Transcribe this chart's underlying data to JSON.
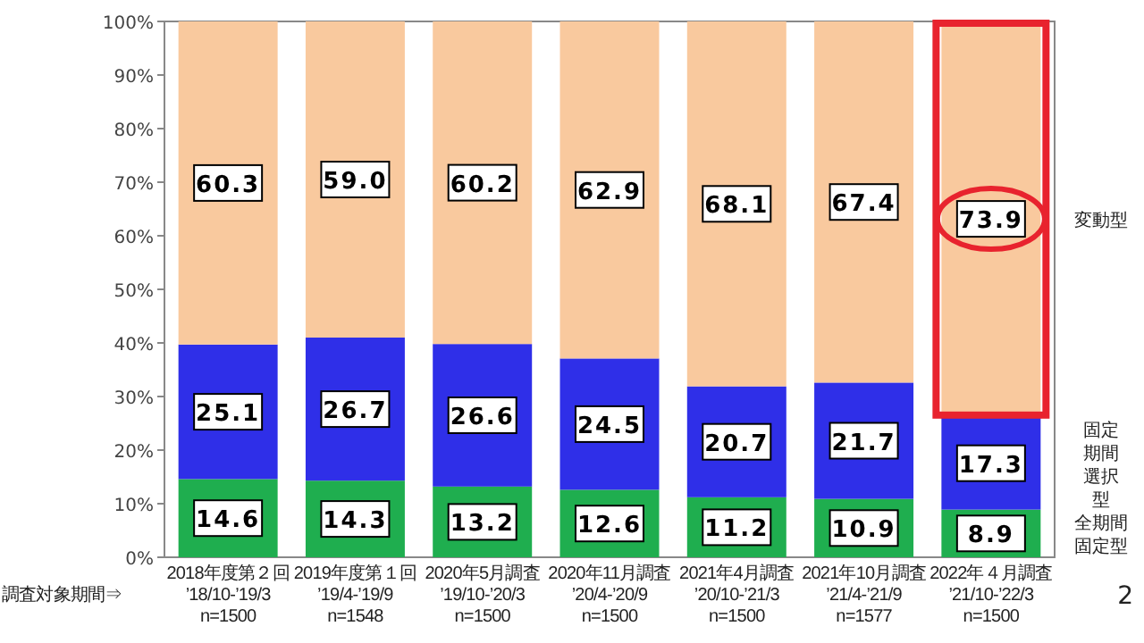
{
  "chart_data": {
    "type": "bar",
    "stacked": true,
    "legend": "right",
    "categories": [
      "2018年度第２回\n’18/10-’19/3\nn=1500",
      "2019年度第１回\n’19/4-’19/9\nn=1548",
      "2020年5月調査\n’19/10-’20/3\nn=1500",
      "2020年11月調査\n’20/4-’20/9\nn=1500",
      "2021年4月調査\n’20/10-’21/3\nn=1500",
      "2021年10月調査\n’21/4-’21/9\nn=1577",
      "2022年４月調査\n’21/10-’22/3\nn=1500"
    ],
    "series": [
      {
        "name": "全期間固定型",
        "color": "#1fae4f",
        "values": [
          14.6,
          14.3,
          13.2,
          12.6,
          11.2,
          10.9,
          8.9
        ],
        "value_labels": [
          "14.6",
          "14.3",
          "13.2",
          "12.6",
          "11.2",
          "10.9",
          "8.9"
        ]
      },
      {
        "name": "固定期間選択型",
        "color": "#2f2fe8",
        "values": [
          25.1,
          26.7,
          26.6,
          24.5,
          20.7,
          21.7,
          17.3
        ],
        "value_labels": [
          "25.1",
          "26.7",
          "26.6",
          "24.5",
          "20.7",
          "21.7",
          "17.3"
        ]
      },
      {
        "name": "変動型",
        "color": "#f9c99e",
        "values": [
          60.3,
          59.0,
          60.2,
          62.9,
          68.1,
          67.4,
          73.9
        ],
        "value_labels": [
          "60.3",
          "59.0",
          "60.2",
          "62.9",
          "68.1",
          "67.4",
          "73.9"
        ]
      }
    ],
    "ylim": [
      0,
      100
    ],
    "yticks": [
      {
        "value": 0,
        "label": "0%"
      },
      {
        "value": 10,
        "label": "10%"
      },
      {
        "value": 20,
        "label": "20%"
      },
      {
        "value": 30,
        "label": "30%"
      },
      {
        "value": 40,
        "label": "40%"
      },
      {
        "value": 50,
        "label": "50%"
      },
      {
        "value": 60,
        "label": "60%"
      },
      {
        "value": 70,
        "label": "70%"
      },
      {
        "value": 80,
        "label": "80%"
      },
      {
        "value": 90,
        "label": "90%"
      },
      {
        "value": 100,
        "label": "100%"
      }
    ],
    "annotations": [
      "調査対象期間⇒",
      "2"
    ]
  }
}
